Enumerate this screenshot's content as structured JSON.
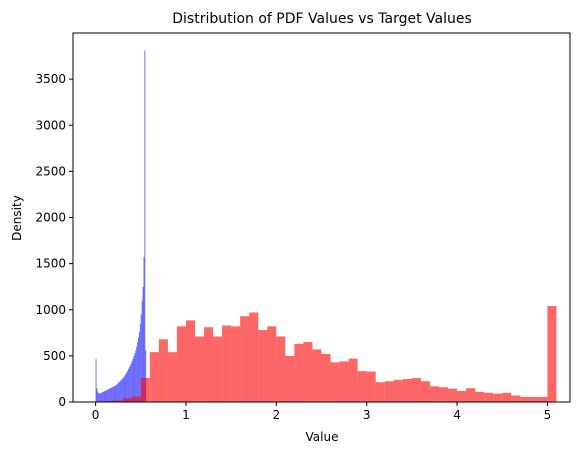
{
  "chart_data": {
    "type": "histogram",
    "title": "Distribution of PDF Values vs Target Values",
    "xlabel": "Value",
    "ylabel": "Density",
    "xlim": [
      -0.25,
      5.25
    ],
    "ylim": [
      0,
      4000
    ],
    "xticks": [
      "0",
      "1",
      "2",
      "3",
      "4",
      "5"
    ],
    "yticks": [
      "0",
      "500",
      "1000",
      "1500",
      "2000",
      "2500",
      "3000",
      "3500"
    ],
    "grid": false,
    "legend": "none",
    "series": [
      {
        "color": "#0000ff",
        "opacity": 0.6,
        "bin_start": 0.0,
        "bin_width": 0.01,
        "values": [
          470,
          150,
          110,
          95,
          90,
          95,
          100,
          105,
          110,
          115,
          120,
          125,
          130,
          135,
          140,
          145,
          150,
          155,
          160,
          165,
          170,
          175,
          180,
          190,
          200,
          210,
          220,
          230,
          240,
          250,
          260,
          275,
          290,
          305,
          320,
          340,
          360,
          380,
          400,
          420,
          445,
          470,
          500,
          530,
          560,
          600,
          650,
          700,
          760,
          850,
          950,
          1100,
          1250,
          1570,
          3810,
          560
        ]
      },
      {
        "color": "#ff0000",
        "opacity": 0.6,
        "bin_start": 0.0,
        "bin_width": 0.1,
        "values": [
          5,
          10,
          15,
          40,
          60,
          260,
          540,
          680,
          540,
          820,
          885,
          710,
          810,
          710,
          830,
          820,
          930,
          970,
          780,
          820,
          710,
          500,
          630,
          650,
          570,
          520,
          430,
          440,
          470,
          335,
          330,
          215,
          225,
          240,
          250,
          260,
          225,
          170,
          160,
          145,
          120,
          150,
          110,
          100,
          90,
          100,
          70,
          55,
          55,
          55,
          1040
        ]
      }
    ]
  }
}
